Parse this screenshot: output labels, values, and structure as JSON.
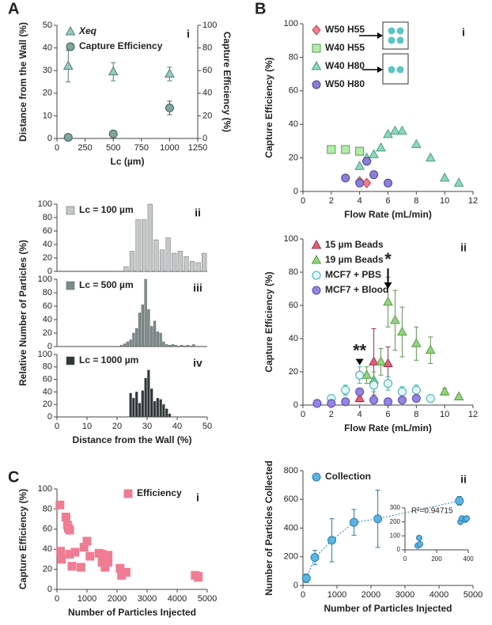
{
  "chart_data": [
    {
      "type": "scatter",
      "panel": "A",
      "panel_label": "i",
      "xlabel": "Lc (µm)",
      "ylabel": "Distance from the Wall (%)",
      "y2label": "Capture Efficiency (%)",
      "xlim": [
        0,
        1250
      ],
      "xticks": [
        0,
        250,
        500,
        750,
        1000,
        1250
      ],
      "ylim": [
        0,
        50
      ],
      "yticks": [
        0,
        10,
        20,
        30,
        40,
        50
      ],
      "y2lim": [
        0,
        100
      ],
      "y2ticks": [
        0,
        20,
        40,
        60,
        80,
        100
      ],
      "legend": "upper left",
      "series": [
        {
          "name": "Xeq",
          "marker": "triangle",
          "color": "#9cc8c2",
          "edgecolor": "#4f7f78",
          "x": [
            100,
            500,
            1000
          ],
          "values": [
            32,
            29.5,
            28.5
          ],
          "errors": [
            7,
            4,
            3
          ]
        },
        {
          "name": "Capture Efficiency",
          "axis": "y2",
          "marker": "circle",
          "color": "#7fa59c",
          "edgecolor": "#3f5f58",
          "x": [
            100,
            500,
            1000
          ],
          "values": [
            1,
            4,
            27
          ],
          "errors": [
            0.5,
            1,
            6
          ]
        }
      ]
    },
    {
      "type": "histogram",
      "panel_label": "ii",
      "xlim": [
        0,
        50
      ],
      "ylim": [
        0,
        100
      ],
      "yticks": [
        0,
        20,
        40,
        60,
        80,
        100
      ],
      "legend": "upper left",
      "bins": [
        22,
        24,
        26,
        28,
        30,
        32,
        34,
        36,
        38,
        40,
        42,
        44,
        46,
        48,
        50
      ],
      "series": [
        {
          "name": "Lc = 100 µm",
          "color": "#c4c8c8",
          "values": [
            7,
            30,
            77,
            77,
            100,
            47,
            32,
            50,
            27,
            30,
            22,
            15,
            13,
            27
          ]
        }
      ]
    },
    {
      "type": "histogram",
      "panel_label": "iii",
      "ylabel": "Relative Number of Particles (%)",
      "xlim": [
        0,
        50
      ],
      "ylim": [
        0,
        100
      ],
      "yticks": [
        0,
        20,
        40,
        60,
        80,
        100
      ],
      "legend": "upper left",
      "bins": [
        21,
        22,
        23,
        24,
        25,
        26,
        27,
        28,
        29,
        30,
        31,
        32,
        33,
        34,
        35,
        36,
        37,
        38,
        39,
        40,
        41,
        42,
        43,
        44,
        45,
        46
      ],
      "series": [
        {
          "name": "Lc = 500 µm",
          "color": "#7c8c8a",
          "values": [
            2,
            4,
            7,
            10,
            20,
            27,
            50,
            62,
            100,
            55,
            30,
            38,
            22,
            20,
            7,
            3,
            2,
            3,
            2,
            1,
            2,
            1,
            2,
            1,
            3
          ]
        }
      ]
    },
    {
      "type": "histogram",
      "panel_label": "iv",
      "xlabel": "Distance from the Wall (%)",
      "xlim": [
        0,
        50
      ],
      "xticks": [
        0,
        10,
        20,
        30,
        40,
        50
      ],
      "ylim": [
        0,
        100
      ],
      "yticks": [
        0,
        20,
        40,
        60,
        80,
        100
      ],
      "legend": "upper left",
      "bins": [
        24,
        25,
        26,
        27,
        28,
        29,
        30,
        31,
        32,
        33,
        34,
        35,
        36,
        37,
        38
      ],
      "series": [
        {
          "name": "Lc = 1000 µm",
          "color": "#2e3838",
          "values": [
            38,
            30,
            40,
            22,
            42,
            62,
            75,
            45,
            25,
            30,
            28,
            20,
            13,
            5
          ]
        }
      ]
    },
    {
      "type": "scatter",
      "panel": "B",
      "panel_label": "i",
      "xlabel": "Flow Rate (mL/min)",
      "ylabel": "Capture Efficiency (%)",
      "xlim": [
        0,
        12
      ],
      "xticks": [
        0,
        2,
        4,
        6,
        8,
        10,
        12
      ],
      "ylim": [
        0,
        100
      ],
      "yticks": [
        0,
        20,
        40,
        60,
        80,
        100
      ],
      "legend": "upper left",
      "series": [
        {
          "name": "W50 H55",
          "marker": "diamond",
          "color": "#f08088",
          "edgecolor": "#c04050",
          "x": [
            4,
            4.5
          ],
          "values": [
            6,
            5
          ]
        },
        {
          "name": "W40 H55",
          "marker": "square",
          "color": "#b4ecac",
          "edgecolor": "#5a9a50",
          "x": [
            2,
            3,
            4
          ],
          "values": [
            25,
            25,
            24
          ]
        },
        {
          "name": "W40 H80",
          "marker": "triangle",
          "color": "#90d8bc",
          "edgecolor": "#4a9c88",
          "x": [
            4,
            4.5,
            5,
            5.5,
            6,
            6.5,
            7,
            8,
            9,
            10,
            11
          ],
          "values": [
            15,
            20,
            22,
            26,
            34,
            36,
            36,
            28,
            20,
            8,
            5
          ]
        },
        {
          "name": "W50 H80",
          "marker": "circle",
          "color": "#8a80d8",
          "edgecolor": "#4a4090",
          "x": [
            3,
            4,
            4.5,
            5,
            6
          ],
          "values": [
            8,
            5,
            18,
            10,
            5
          ]
        }
      ]
    },
    {
      "type": "scatter",
      "panel_label": "ii",
      "xlabel": "Flow Rate (mL/min)",
      "ylabel": "Capture Efficiency (%)",
      "xlim": [
        0,
        12
      ],
      "xticks": [
        0,
        2,
        4,
        6,
        8,
        10,
        12
      ],
      "ylim": [
        0,
        100
      ],
      "yticks": [
        0,
        20,
        40,
        60,
        80,
        100
      ],
      "legend": "upper left",
      "annotations": [
        "**",
        "*"
      ],
      "series": [
        {
          "name": "15 µm Beads",
          "marker": "triangle",
          "color": "#e06078",
          "edgecolor": "#a03048",
          "x": [
            4,
            5,
            6
          ],
          "values": [
            4,
            26,
            25
          ],
          "errors": [
            2,
            20,
            10
          ]
        },
        {
          "name": "19 µm Beads",
          "marker": "triangle",
          "color": "#94d480",
          "edgecolor": "#5a9a48",
          "x": [
            4.5,
            5,
            5.5,
            6,
            6.5,
            7,
            8,
            9,
            10,
            11
          ],
          "values": [
            18,
            15,
            26,
            62,
            51,
            44,
            37,
            33,
            8,
            5
          ],
          "errors": [
            5,
            5,
            8,
            15,
            18,
            15,
            10,
            8,
            2,
            1
          ]
        },
        {
          "name": "MCF7 + PBS",
          "marker": "circle",
          "color": "#e8f8f8",
          "edgecolor": "#30b0b0",
          "x": [
            1,
            2,
            3,
            4,
            5,
            6,
            7,
            8,
            9
          ],
          "values": [
            1,
            4,
            9,
            18,
            12,
            13,
            8,
            9,
            4
          ],
          "errors": [
            1,
            2,
            3,
            5,
            4,
            4,
            3,
            3,
            2
          ]
        },
        {
          "name": "MCF7 + Blood",
          "marker": "circle",
          "color": "#9484e4",
          "edgecolor": "#5a48a8",
          "x": [
            1,
            2,
            3,
            4,
            5,
            6,
            7,
            8
          ],
          "values": [
            1,
            1,
            2,
            8,
            3,
            2,
            3,
            4
          ],
          "errors": [
            0.5,
            0.5,
            1,
            2,
            1,
            1,
            1,
            1
          ]
        }
      ]
    },
    {
      "type": "scatter",
      "panel": "C",
      "panel_label": "i",
      "xlabel": "Number of Particles Injected",
      "ylabel": "Capture Efficiency (%)",
      "xlim": [
        0,
        5000
      ],
      "xticks": [
        0,
        1000,
        2000,
        3000,
        4000,
        5000
      ],
      "ylim": [
        0,
        100
      ],
      "yticks": [
        0,
        20,
        40,
        60,
        80,
        100
      ],
      "legend": "upper right",
      "series": [
        {
          "name": "Efficiency",
          "marker": "square",
          "color": "#f07c94",
          "edgecolor": "#f07c94",
          "x": [
            100,
            120,
            150,
            300,
            350,
            380,
            420,
            420,
            500,
            600,
            800,
            900,
            1000,
            1100,
            1400,
            1500,
            1500,
            1600,
            1700,
            1700,
            2100,
            2150,
            2300,
            4600,
            4700,
            4700
          ],
          "values": [
            84,
            38,
            30,
            72,
            64,
            61,
            59,
            35,
            23,
            37,
            22,
            42,
            48,
            33,
            36,
            35,
            27,
            22,
            27,
            34,
            21,
            14,
            17,
            14,
            12,
            13
          ]
        }
      ]
    },
    {
      "type": "scatter",
      "panel_label": "ii",
      "xlabel": "Number of Particles Injected",
      "ylabel": "Number of Particles Collected",
      "xlim": [
        0,
        5000
      ],
      "xticks": [
        0,
        1000,
        2000,
        3000,
        4000,
        5000
      ],
      "ylim": [
        0,
        800
      ],
      "yticks": [
        0,
        200,
        400,
        600,
        800
      ],
      "legend": "upper left",
      "fit": true,
      "series": [
        {
          "name": "Collection",
          "marker": "circle",
          "color": "#5cb4e0",
          "edgecolor": "#2a7cb0",
          "x": [
            100,
            350,
            850,
            1500,
            2200,
            4600
          ],
          "values": [
            50,
            195,
            315,
            440,
            465,
            590
          ],
          "errors": [
            30,
            50,
            150,
            90,
            200,
            30
          ]
        }
      ]
    },
    {
      "type": "scatter",
      "xlim": [
        0,
        400
      ],
      "xticks": [
        0,
        200,
        400
      ],
      "ylim": [
        0,
        300
      ],
      "yticks": [
        0,
        100,
        200,
        300
      ],
      "annotations": [
        "R²=0.94715"
      ],
      "series": [
        {
          "marker": "circle",
          "color": "#5cb4e0",
          "edgecolor": "#2a7cb0",
          "x": [
            80,
            90,
            95,
            350,
            360,
            380,
            390
          ],
          "values": [
            30,
            85,
            40,
            200,
            225,
            215,
            225
          ]
        }
      ]
    }
  ]
}
